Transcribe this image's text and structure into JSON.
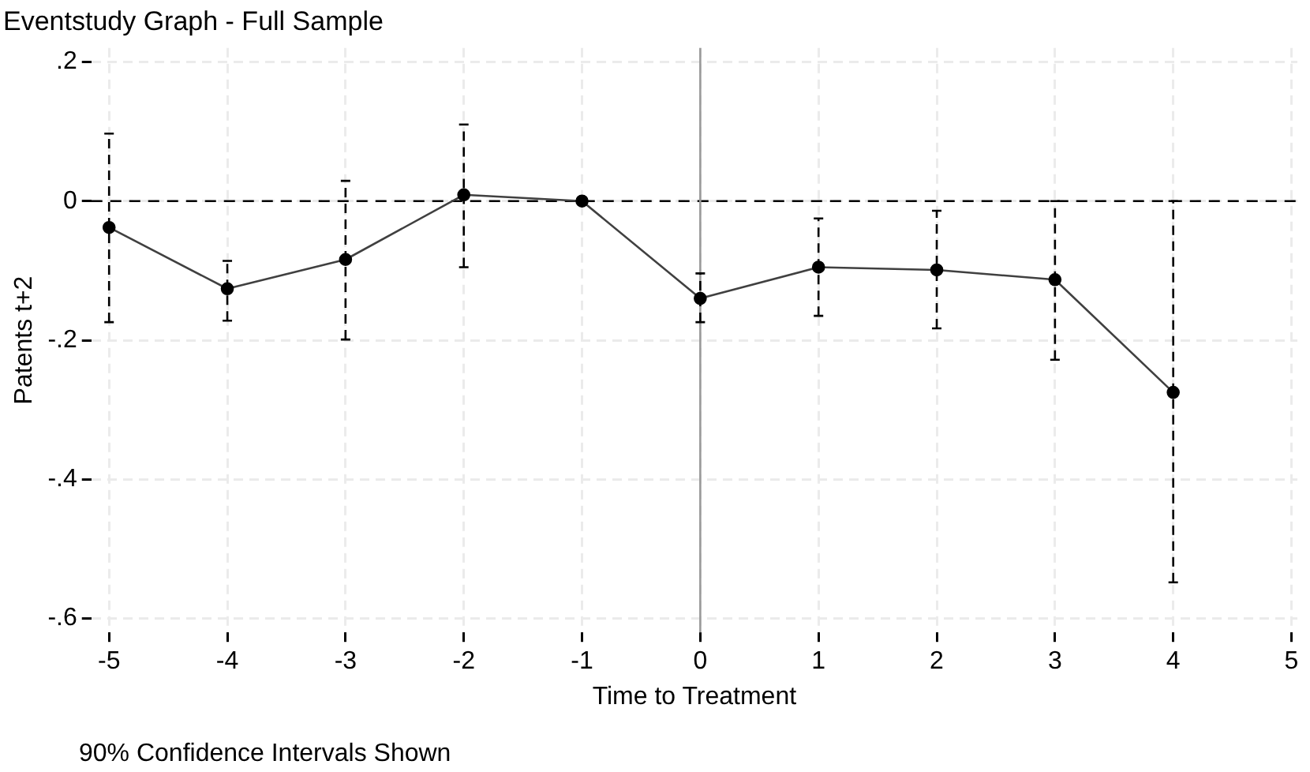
{
  "chart_data": {
    "type": "line",
    "title": "Eventstudy Graph - Full Sample",
    "xlabel": "Time to Treatment",
    "ylabel": "Patents t+2",
    "x": [
      -5,
      -4,
      -3,
      -2,
      -1,
      0,
      1,
      2,
      3,
      4
    ],
    "series": [
      {
        "color": "#404040",
        "values": [
          -0.038,
          -0.126,
          -0.084,
          0.009,
          0,
          -0.14,
          -0.095,
          -0.099,
          -0.113,
          -0.275
        ],
        "errors": [
          [
            -0.174,
            0.097
          ],
          [
            -0.172,
            -0.086
          ],
          [
            -0.199,
            0.029
          ],
          [
            -0.095,
            0.11
          ],
          null,
          [
            -0.174,
            -0.104
          ],
          [
            -0.165,
            -0.025
          ],
          [
            -0.183,
            -0.014
          ],
          [
            -0.228,
            0.0
          ],
          [
            -0.548,
            0.0
          ]
        ]
      }
    ],
    "xlim": [
      -5.15,
      5.05
    ],
    "xticks": [
      -5,
      -4,
      -3,
      -2,
      -1,
      0,
      1,
      2,
      3,
      4,
      5
    ],
    "ylim": [
      -0.62,
      0.22
    ],
    "yticks": [
      {
        "value": 0.2,
        "label": ".2"
      },
      0,
      {
        "value": -0.2,
        "label": "-.2"
      },
      {
        "value": -0.4,
        "label": "-.4"
      },
      {
        "value": -0.6,
        "label": "-.6"
      }
    ],
    "ref_lines": [
      {
        "axis": "y",
        "value": 0,
        "color": "#000000",
        "line_style": "dashed"
      },
      {
        "axis": "x",
        "value": 0,
        "color": "#9a9a9a",
        "line_style": "solid"
      }
    ],
    "annotations": [
      "90% Confidence Intervals Shown"
    ],
    "grid": true,
    "legend": false,
    "marker": "circle",
    "line_style": "solid"
  }
}
